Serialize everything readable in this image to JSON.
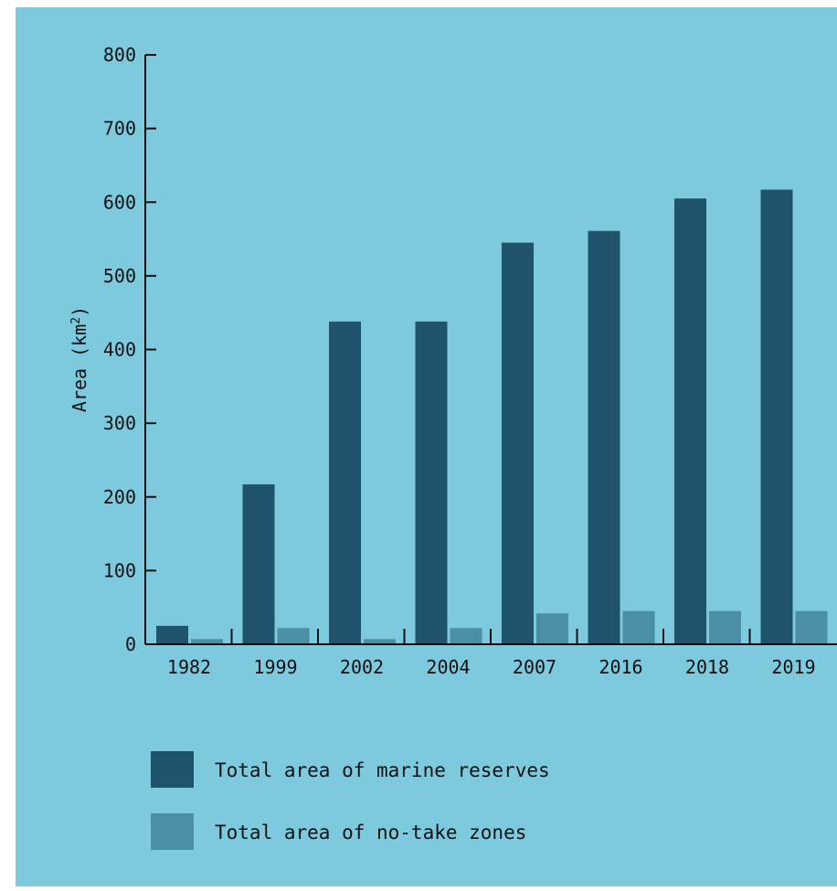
{
  "chart_data": {
    "type": "bar",
    "ylabel": "Area (km²)",
    "ylabel_main": "Area (km",
    "ylabel_sup": "2",
    "ylabel_close": ")",
    "ylim": [
      0,
      800
    ],
    "yticks": [
      "0",
      "100",
      "200",
      "300",
      "400",
      "500",
      "600",
      "700",
      "800"
    ],
    "categories": [
      "1982",
      "1999",
      "2002",
      "2004",
      "2007",
      "2016",
      "2018",
      "2019"
    ],
    "series": [
      {
        "name": "Total area of marine reserves",
        "color": "#1e536b",
        "values": [
          25,
          217,
          438,
          438,
          545,
          561,
          605,
          617
        ]
      },
      {
        "name": "Total area of no-take zones",
        "color": "#4a8fa6",
        "values": [
          7,
          22,
          7,
          22,
          42,
          45,
          45,
          45
        ]
      }
    ],
    "grid": false,
    "legend_position": "bottom-left"
  },
  "colors": {
    "background": "#7dcade",
    "axis": "#111111"
  }
}
